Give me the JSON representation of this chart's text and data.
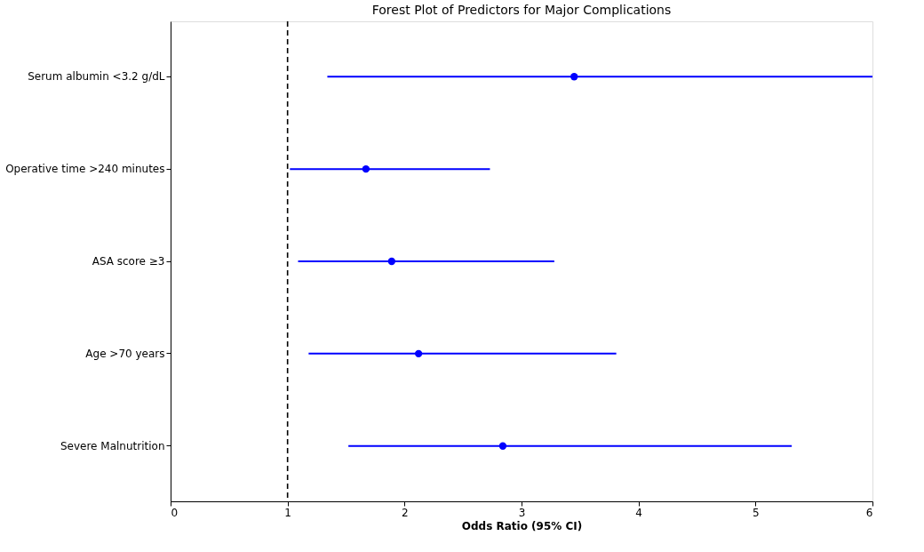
{
  "chart_data": {
    "type": "scatter",
    "orientation": "horizontal",
    "title": "Forest Plot of Predictors for Major Complications",
    "xlabel": "Odds Ratio (95% CI)",
    "categories": [
      "Serum albumin <3.2 g/dL",
      "Operative time >240 minutes",
      "ASA score ≥3",
      "Age >70 years",
      "Severe Malnutrition"
    ],
    "series": [
      {
        "color": "#0000ff",
        "values": [
          3.45,
          1.67,
          1.89,
          2.12,
          2.84
        ],
        "errors": [
          [
            1.34,
            6
          ],
          [
            1.02,
            2.73
          ],
          [
            1.09,
            3.28
          ],
          [
            1.18,
            3.81
          ],
          [
            1.52,
            5.31
          ]
        ]
      }
    ],
    "xlim": [
      0,
      6
    ],
    "xticks": [
      0,
      1,
      2,
      3,
      4,
      5,
      6
    ],
    "ref_lines": [
      {
        "axis": "x",
        "value": 1,
        "color": "#000000",
        "line_style": "dashed"
      }
    ],
    "marker": "circle",
    "grid": false
  }
}
